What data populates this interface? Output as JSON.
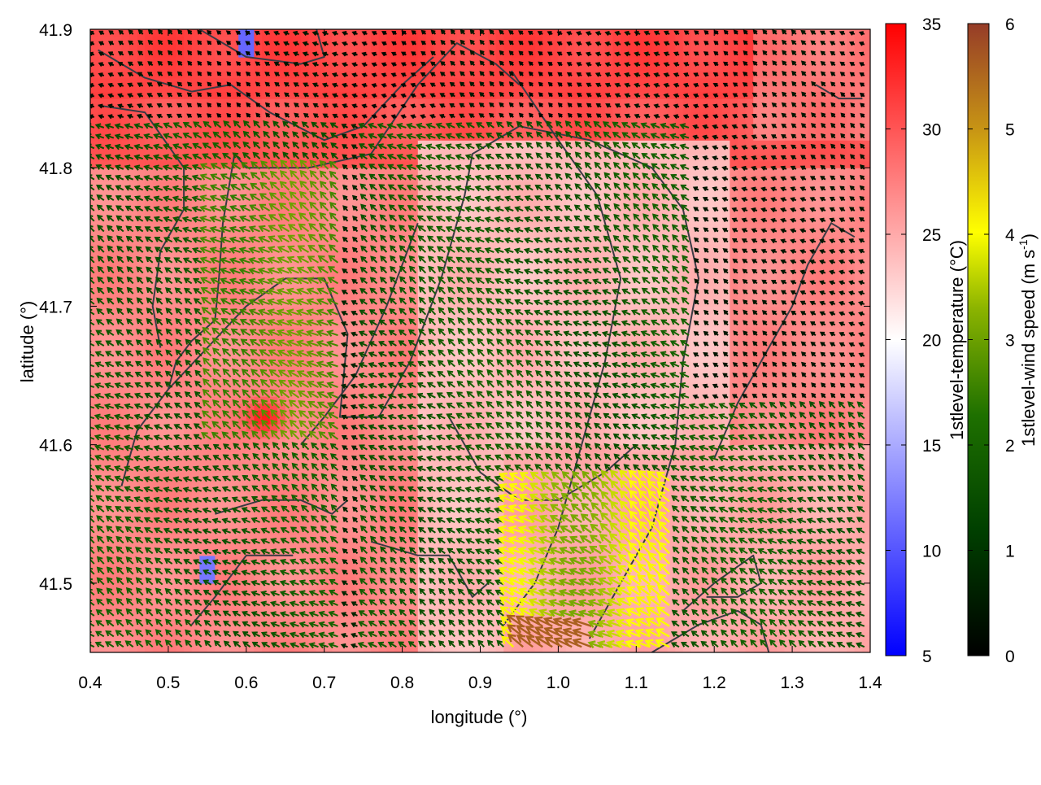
{
  "chart_data": {
    "type": "heatmap",
    "title": "",
    "xlabel": "longitude (°)",
    "ylabel": "latitude (°)",
    "xlim": [
      0.4,
      1.4
    ],
    "ylim": [
      41.45,
      41.9
    ],
    "xticks": [
      "0.4",
      "0.5",
      "0.6",
      "0.7",
      "0.8",
      "0.9",
      "1.0",
      "1.1",
      "1.2",
      "1.3",
      "1.4"
    ],
    "yticks": [
      "41.5",
      "41.6",
      "41.7",
      "41.8",
      "41.9"
    ],
    "grid": false,
    "colorbars": [
      {
        "label": "1stlevel-temperature (°C)",
        "range": [
          5,
          35
        ],
        "ticks": [
          "5",
          "10",
          "15",
          "20",
          "25",
          "30",
          "35"
        ],
        "colors": [
          "#0000ff",
          "#ffffff",
          "#ff0000"
        ]
      },
      {
        "label_main": "1stlevel-wind speed (m s",
        "label_sup": "-1",
        "label_end": ")",
        "range": [
          0,
          6
        ],
        "ticks": [
          "0",
          "1",
          "2",
          "3",
          "4",
          "5",
          "6"
        ],
        "colors": [
          "#000000",
          "#005000",
          "#8cb400",
          "#ffff00",
          "#c89614",
          "#963c28"
        ]
      }
    ],
    "temperature_field": {
      "description_values_degC": {
        "north_band_lat_41.85_41.9": 31,
        "interior_default": 27,
        "eastern_valley_lon_0.9_1.2": 24,
        "southeast_lat_41.45_41.6": 25,
        "hotspot_lon_0.625_lat_41.62": 34,
        "cold_pixels": [
          {
            "lon": 0.6,
            "lat": 41.89,
            "t": 11
          },
          {
            "lon": 0.55,
            "lat": 41.51,
            "t": 12
          }
        ]
      }
    },
    "wind_field": {
      "prevailing_direction": "toward north-west",
      "speed_regions_ms": [
        {
          "region": "north band",
          "speed": 0.3
        },
        {
          "region": "western interior",
          "speed": 1.8
        },
        {
          "region": "central plain lon 0.55-0.72 lat 41.6-41.8",
          "speed": 3.0
        },
        {
          "region": "south-central lon 0.93-1.15 lat 41.45-41.58",
          "speed": 4.0
        },
        {
          "region": "south lon 0.95-1.05 lat 41.46",
          "speed": 5.8
        }
      ]
    }
  }
}
